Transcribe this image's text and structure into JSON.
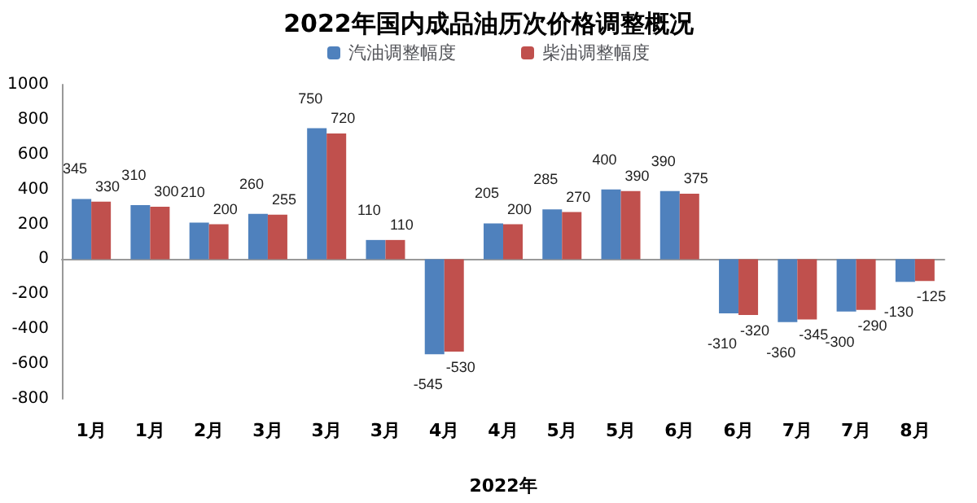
{
  "chart_data": {
    "type": "bar",
    "title": "2022年国内成品油历次价格调整概况",
    "xlabel": "2022年",
    "categories": [
      "1月",
      "1月",
      "2月",
      "3月",
      "3月",
      "3月",
      "4月",
      "4月",
      "5月",
      "5月",
      "6月",
      "6月",
      "7月",
      "7月",
      "8月"
    ],
    "series": [
      {
        "name": "汽油调整幅度",
        "color": "#4f81bd",
        "values": [
          345,
          310,
          210,
          260,
          750,
          110,
          -545,
          205,
          285,
          400,
          390,
          -310,
          -360,
          -300,
          -130
        ]
      },
      {
        "name": "柴油调整幅度",
        "color": "#c0504d",
        "values": [
          330,
          300,
          200,
          255,
          720,
          110,
          -530,
          200,
          270,
          390,
          375,
          -320,
          -345,
          -290,
          -125
        ]
      }
    ],
    "ylim": [
      -800,
      1000
    ],
    "yticks": [
      -800,
      -600,
      -400,
      -200,
      0,
      200,
      400,
      600,
      800,
      1000
    ],
    "data_labels": true,
    "legend": "top"
  }
}
